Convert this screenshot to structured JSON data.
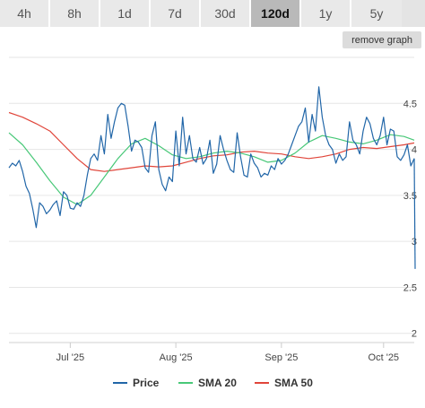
{
  "tabs": [
    {
      "label": "4h",
      "active": false
    },
    {
      "label": "8h",
      "active": false
    },
    {
      "label": "1d",
      "active": false
    },
    {
      "label": "7d",
      "active": false
    },
    {
      "label": "30d",
      "active": false
    },
    {
      "label": "120d",
      "active": true
    },
    {
      "label": "1y",
      "active": false
    },
    {
      "label": "5y",
      "active": false
    }
  ],
  "remove_graph_label": "remove graph",
  "colors": {
    "price": "#2166a8",
    "sma20": "#48c878",
    "sma50": "#e0453a",
    "grid": "#e6e6e6"
  },
  "chart_data": {
    "type": "line",
    "x_tick_labels": [
      "Jul '25",
      "Aug '25",
      "Sep '25",
      "Oct '25"
    ],
    "x_tick_days": [
      18,
      49,
      80,
      110
    ],
    "ylim": [
      2,
      5
    ],
    "y_tick_labels": [
      "2",
      "2.5",
      "3",
      "3.5",
      "4",
      "4.5"
    ],
    "y_ticks": [
      2,
      2.5,
      3,
      3.5,
      4,
      4.5
    ],
    "grid": true,
    "legend_position": "bottom",
    "series": [
      {
        "name": "Price",
        "x": [
          0,
          1,
          2,
          3,
          4,
          5,
          6,
          7,
          8,
          9,
          10,
          11,
          12,
          13,
          14,
          15,
          16,
          17,
          18,
          19,
          20,
          21,
          22,
          23,
          24,
          25,
          26,
          27,
          28,
          29,
          30,
          31,
          32,
          33,
          34,
          35,
          36,
          37,
          38,
          39,
          40,
          41,
          42,
          43,
          44,
          45,
          46,
          47,
          48,
          49,
          50,
          51,
          52,
          53,
          54,
          55,
          56,
          57,
          58,
          59,
          60,
          61,
          62,
          63,
          64,
          65,
          66,
          67,
          68,
          69,
          70,
          71,
          72,
          73,
          74,
          75,
          76,
          77,
          78,
          79,
          80,
          81,
          82,
          83,
          84,
          85,
          86,
          87,
          88,
          89,
          90,
          91,
          92,
          93,
          94,
          95,
          96,
          97,
          98,
          99,
          100,
          101,
          102,
          103,
          104,
          105,
          106,
          107,
          108,
          109,
          110,
          111,
          112,
          113,
          114,
          115,
          116,
          117,
          118,
          119
        ],
        "y": [
          3.8,
          3.85,
          3.82,
          3.88,
          3.76,
          3.6,
          3.52,
          3.35,
          3.15,
          3.42,
          3.38,
          3.3,
          3.34,
          3.4,
          3.44,
          3.28,
          3.54,
          3.5,
          3.36,
          3.35,
          3.42,
          3.38,
          3.5,
          3.72,
          3.9,
          3.95,
          3.88,
          4.15,
          3.95,
          4.38,
          4.12,
          4.3,
          4.45,
          4.5,
          4.48,
          4.25,
          3.98,
          4.1,
          4.08,
          4.02,
          3.8,
          3.75,
          4.15,
          4.3,
          3.78,
          3.62,
          3.55,
          3.7,
          3.65,
          4.2,
          3.82,
          4.35,
          3.95,
          4.15,
          3.9,
          3.86,
          4.02,
          3.84,
          3.9,
          4.1,
          3.74,
          3.84,
          4.15,
          4.0,
          3.88,
          3.78,
          3.75,
          4.18,
          3.92,
          3.72,
          3.7,
          3.95,
          3.85,
          3.8,
          3.7,
          3.74,
          3.72,
          3.82,
          3.78,
          3.9,
          3.84,
          3.88,
          3.95,
          4.05,
          4.15,
          4.25,
          4.3,
          4.45,
          4.08,
          4.38,
          4.2,
          4.68,
          4.35,
          4.15,
          4.05,
          4.0,
          3.85,
          3.95,
          3.88,
          3.92,
          4.3,
          4.1,
          4.05,
          3.95,
          4.2,
          4.35,
          4.28,
          4.12,
          4.05,
          4.15,
          4.35,
          4.05,
          4.22,
          4.2,
          3.92,
          3.88,
          3.94,
          4.05,
          3.82,
          3.9
        ],
        "color": "#2166a8"
      },
      {
        "name": "SMA 20",
        "x": [
          0,
          4,
          8,
          12,
          16,
          20,
          24,
          28,
          32,
          36,
          40,
          44,
          48,
          52,
          56,
          60,
          64,
          68,
          72,
          76,
          80,
          84,
          88,
          92,
          96,
          100,
          104,
          108,
          112,
          116,
          119
        ],
        "y": [
          4.18,
          4.05,
          3.86,
          3.66,
          3.48,
          3.4,
          3.5,
          3.7,
          3.9,
          4.06,
          4.12,
          4.04,
          3.94,
          3.9,
          3.92,
          3.96,
          3.98,
          3.96,
          3.92,
          3.86,
          3.88,
          3.96,
          4.08,
          4.15,
          4.12,
          4.08,
          4.06,
          4.1,
          4.16,
          4.14,
          4.1
        ],
        "color": "#48c878"
      },
      {
        "name": "SMA 50",
        "x": [
          0,
          4,
          8,
          12,
          16,
          20,
          24,
          28,
          32,
          36,
          40,
          44,
          48,
          52,
          56,
          60,
          64,
          68,
          72,
          76,
          80,
          84,
          88,
          92,
          96,
          100,
          104,
          108,
          112,
          116,
          119
        ],
        "y": [
          4.4,
          4.35,
          4.28,
          4.2,
          4.05,
          3.9,
          3.78,
          3.76,
          3.78,
          3.8,
          3.82,
          3.81,
          3.82,
          3.86,
          3.9,
          3.93,
          3.94,
          3.97,
          3.98,
          3.96,
          3.95,
          3.92,
          3.9,
          3.92,
          3.95,
          4.0,
          4.02,
          4.01,
          4.03,
          4.05,
          4.07
        ],
        "color": "#e0453a"
      }
    ]
  }
}
